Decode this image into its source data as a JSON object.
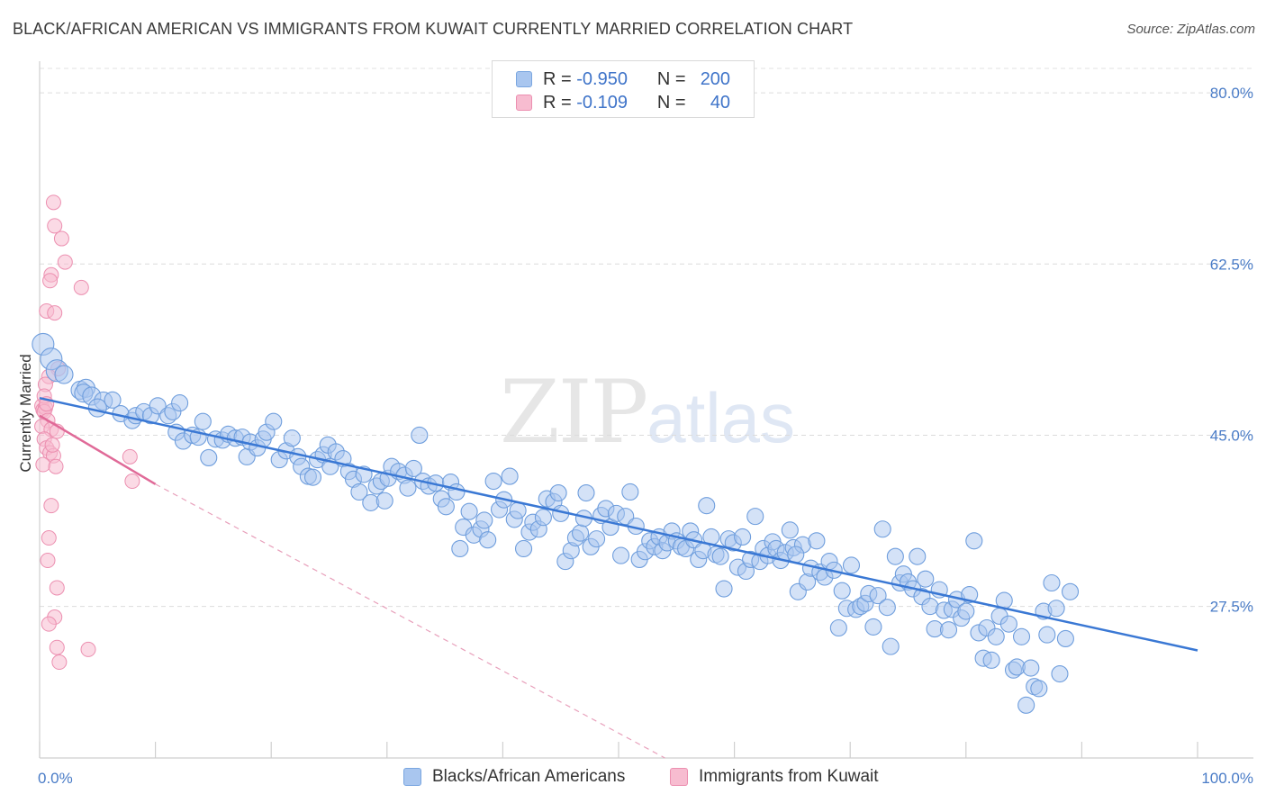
{
  "header": {
    "title": "BLACK/AFRICAN AMERICAN VS IMMIGRANTS FROM KUWAIT CURRENTLY MARRIED CORRELATION CHART",
    "source": "Source: ZipAtlas.com"
  },
  "watermark": {
    "zip": "ZIP",
    "atlas": "atlas"
  },
  "legend": {
    "rows": [
      {
        "r_label": "R =",
        "r_value": "-0.950",
        "n_label": "N =",
        "n_value": "200",
        "color": "#a9c6ef",
        "border": "#7aa6e0"
      },
      {
        "r_label": "R =",
        "r_value": "-0.109",
        "n_label": "N =",
        "n_value": "40",
        "color": "#f7bcd0",
        "border": "#ec8fb0"
      }
    ]
  },
  "bottom_legend": {
    "items": [
      {
        "label": "Blacks/African Americans",
        "color": "#a9c6ef",
        "border": "#7aa6e0"
      },
      {
        "label": "Immigrants from Kuwait",
        "color": "#f7bcd0",
        "border": "#ec8fb0"
      }
    ]
  },
  "chart_data": {
    "type": "scatter",
    "title": "BLACK/AFRICAN AMERICAN VS IMMIGRANTS FROM KUWAIT CURRENTLY MARRIED CORRELATION CHART",
    "xlabel": "",
    "ylabel": "Currently Married",
    "xlim": [
      0,
      100
    ],
    "ylim": [
      12,
      82.5
    ],
    "x_tick_labels": [
      "0.0%",
      "100.0%"
    ],
    "y_ticks": [
      27.5,
      45.0,
      62.5,
      80.0
    ],
    "y_tick_labels": [
      "27.5%",
      "45.0%",
      "62.5%",
      "80.0%"
    ],
    "grid": true,
    "legend_position": "top-center",
    "colors": {
      "blue": "#4a86d8",
      "blue_fill": "#a9c6ef",
      "pink": "#e06a98",
      "pink_fill": "#f7bcd0"
    },
    "series": [
      {
        "name": "Blacks/African Americans",
        "r": -0.95,
        "n": 200,
        "trend": {
          "x": [
            0,
            100
          ],
          "y": [
            48.8,
            23.0
          ]
        },
        "points": [
          [
            0.3,
            54.3
          ],
          [
            1.0,
            52.8
          ],
          [
            1.5,
            51.6
          ],
          [
            2.1,
            51.2
          ],
          [
            3.5,
            49.6
          ],
          [
            4.0,
            49.8
          ],
          [
            3.8,
            49.3
          ],
          [
            4.5,
            49.0
          ],
          [
            5.5,
            48.5
          ],
          [
            5.0,
            47.8
          ],
          [
            6.3,
            48.6
          ],
          [
            7.0,
            47.2
          ],
          [
            8.0,
            46.5
          ],
          [
            8.3,
            47.0
          ],
          [
            9.0,
            47.4
          ],
          [
            9.6,
            47.0
          ],
          [
            10.2,
            48.0
          ],
          [
            11.1,
            47.0
          ],
          [
            11.5,
            47.4
          ],
          [
            12.1,
            48.3
          ],
          [
            11.8,
            45.3
          ],
          [
            12.4,
            44.4
          ],
          [
            13.2,
            45.0
          ],
          [
            13.7,
            44.8
          ],
          [
            14.1,
            46.4
          ],
          [
            14.6,
            42.7
          ],
          [
            15.2,
            44.6
          ],
          [
            15.8,
            44.5
          ],
          [
            16.3,
            45.1
          ],
          [
            16.9,
            44.7
          ],
          [
            17.5,
            44.8
          ],
          [
            17.9,
            42.8
          ],
          [
            18.2,
            44.3
          ],
          [
            18.8,
            43.7
          ],
          [
            19.3,
            44.6
          ],
          [
            19.6,
            45.3
          ],
          [
            20.2,
            46.4
          ],
          [
            20.7,
            42.5
          ],
          [
            21.3,
            43.4
          ],
          [
            21.8,
            44.7
          ],
          [
            22.3,
            42.8
          ],
          [
            22.6,
            41.8
          ],
          [
            23.2,
            40.8
          ],
          [
            23.6,
            40.7
          ],
          [
            24.0,
            42.5
          ],
          [
            24.5,
            43.0
          ],
          [
            25.1,
            41.8
          ],
          [
            24.9,
            44.0
          ],
          [
            25.6,
            43.3
          ],
          [
            26.2,
            42.6
          ],
          [
            26.7,
            41.3
          ],
          [
            27.1,
            40.5
          ],
          [
            27.6,
            39.2
          ],
          [
            28.0,
            41.0
          ],
          [
            28.6,
            38.1
          ],
          [
            29.1,
            39.8
          ],
          [
            29.5,
            40.3
          ],
          [
            30.1,
            40.6
          ],
          [
            30.4,
            41.8
          ],
          [
            31.0,
            41.3
          ],
          [
            31.5,
            40.9
          ],
          [
            31.8,
            39.6
          ],
          [
            32.3,
            41.6
          ],
          [
            32.8,
            45.0
          ],
          [
            33.1,
            40.3
          ],
          [
            33.6,
            39.8
          ],
          [
            34.2,
            40.1
          ],
          [
            34.7,
            38.5
          ],
          [
            35.1,
            37.7
          ],
          [
            35.5,
            40.2
          ],
          [
            36.0,
            39.2
          ],
          [
            36.3,
            33.4
          ],
          [
            36.6,
            35.6
          ],
          [
            37.1,
            37.2
          ],
          [
            37.5,
            34.8
          ],
          [
            38.1,
            35.4
          ],
          [
            38.4,
            36.3
          ],
          [
            38.7,
            34.3
          ],
          [
            39.2,
            40.3
          ],
          [
            39.7,
            37.4
          ],
          [
            40.1,
            38.4
          ],
          [
            40.6,
            40.8
          ],
          [
            41.0,
            36.4
          ],
          [
            41.3,
            37.3
          ],
          [
            41.8,
            33.4
          ],
          [
            42.3,
            35.1
          ],
          [
            42.6,
            36.1
          ],
          [
            43.1,
            35.4
          ],
          [
            43.5,
            36.6
          ],
          [
            43.8,
            38.5
          ],
          [
            44.4,
            38.2
          ],
          [
            44.8,
            39.1
          ],
          [
            45.0,
            37.0
          ],
          [
            45.4,
            32.1
          ],
          [
            45.9,
            33.2
          ],
          [
            46.3,
            34.5
          ],
          [
            46.7,
            35.0
          ],
          [
            47.2,
            39.1
          ],
          [
            47.6,
            33.6
          ],
          [
            48.1,
            34.4
          ],
          [
            48.5,
            36.8
          ],
          [
            48.9,
            37.5
          ],
          [
            49.3,
            35.6
          ],
          [
            49.8,
            37.0
          ],
          [
            50.2,
            32.7
          ],
          [
            50.6,
            36.7
          ],
          [
            51.0,
            39.2
          ],
          [
            51.5,
            35.7
          ],
          [
            51.8,
            32.3
          ],
          [
            52.3,
            33.1
          ],
          [
            52.7,
            34.2
          ],
          [
            53.1,
            33.6
          ],
          [
            53.5,
            34.6
          ],
          [
            53.8,
            33.2
          ],
          [
            54.2,
            34.0
          ],
          [
            54.6,
            35.2
          ],
          [
            55.0,
            34.2
          ],
          [
            55.4,
            33.6
          ],
          [
            55.8,
            33.4
          ],
          [
            56.2,
            35.2
          ],
          [
            56.5,
            34.3
          ],
          [
            56.9,
            32.3
          ],
          [
            57.3,
            33.2
          ],
          [
            57.6,
            37.8
          ],
          [
            58.0,
            34.6
          ],
          [
            58.4,
            32.8
          ],
          [
            58.8,
            32.6
          ],
          [
            59.1,
            29.3
          ],
          [
            59.5,
            34.4
          ],
          [
            59.9,
            34.0
          ],
          [
            60.3,
            31.5
          ],
          [
            60.7,
            34.6
          ],
          [
            61.0,
            31.1
          ],
          [
            61.4,
            32.3
          ],
          [
            61.8,
            36.7
          ],
          [
            62.2,
            32.1
          ],
          [
            62.5,
            33.4
          ],
          [
            62.9,
            32.7
          ],
          [
            63.3,
            34.1
          ],
          [
            63.6,
            33.4
          ],
          [
            64.0,
            32.2
          ],
          [
            64.4,
            33.0
          ],
          [
            64.8,
            35.3
          ],
          [
            65.1,
            33.5
          ],
          [
            65.5,
            29.0
          ],
          [
            65.9,
            33.8
          ],
          [
            66.3,
            30.0
          ],
          [
            66.6,
            31.4
          ],
          [
            67.1,
            34.2
          ],
          [
            67.4,
            31.0
          ],
          [
            67.8,
            30.5
          ],
          [
            68.2,
            32.1
          ],
          [
            68.6,
            31.2
          ],
          [
            69.0,
            25.3
          ],
          [
            69.3,
            29.1
          ],
          [
            69.7,
            27.3
          ],
          [
            70.1,
            31.7
          ],
          [
            70.5,
            27.2
          ],
          [
            70.9,
            27.5
          ],
          [
            71.3,
            27.8
          ],
          [
            71.6,
            28.8
          ],
          [
            72.0,
            25.4
          ],
          [
            72.4,
            28.6
          ],
          [
            72.8,
            35.4
          ],
          [
            73.2,
            27.4
          ],
          [
            73.5,
            23.4
          ],
          [
            73.9,
            32.6
          ],
          [
            74.3,
            29.9
          ],
          [
            74.6,
            30.8
          ],
          [
            75.0,
            30.0
          ],
          [
            75.4,
            29.3
          ],
          [
            75.8,
            32.6
          ],
          [
            76.2,
            28.5
          ],
          [
            76.5,
            30.3
          ],
          [
            76.9,
            27.5
          ],
          [
            77.3,
            25.2
          ],
          [
            77.7,
            29.2
          ],
          [
            78.1,
            27.1
          ],
          [
            78.5,
            25.1
          ],
          [
            78.8,
            27.2
          ],
          [
            79.2,
            28.2
          ],
          [
            79.6,
            26.3
          ],
          [
            80.0,
            27.0
          ],
          [
            80.3,
            28.7
          ],
          [
            80.7,
            34.2
          ],
          [
            81.1,
            24.8
          ],
          [
            81.5,
            22.2
          ],
          [
            81.8,
            25.3
          ],
          [
            82.2,
            22.0
          ],
          [
            82.6,
            24.4
          ],
          [
            82.9,
            26.5
          ],
          [
            83.3,
            28.1
          ],
          [
            83.7,
            25.7
          ],
          [
            84.1,
            21.0
          ],
          [
            84.4,
            21.3
          ],
          [
            84.8,
            24.4
          ],
          [
            85.2,
            17.4
          ],
          [
            85.6,
            21.2
          ],
          [
            85.9,
            19.3
          ],
          [
            86.3,
            19.1
          ],
          [
            86.7,
            27.0
          ],
          [
            87.0,
            24.6
          ],
          [
            87.4,
            29.9
          ],
          [
            87.8,
            27.3
          ],
          [
            88.1,
            20.6
          ],
          [
            88.6,
            24.2
          ],
          [
            89.0,
            29.0
          ],
          [
            65.3,
            32.8
          ],
          [
            29.8,
            38.3
          ],
          [
            47.0,
            36.5
          ]
        ]
      },
      {
        "name": "Immigrants from Kuwait",
        "r": -0.109,
        "n": 40,
        "trend": {
          "x": [
            0,
            10
          ],
          "y": [
            47.0,
            40.0
          ]
        },
        "trend_extension": {
          "x": [
            10,
            54
          ],
          "y": [
            40.0,
            12.0
          ]
        },
        "points": [
          [
            1.2,
            68.8
          ],
          [
            1.3,
            66.4
          ],
          [
            1.9,
            65.1
          ],
          [
            2.2,
            62.7
          ],
          [
            1.0,
            61.4
          ],
          [
            0.9,
            60.8
          ],
          [
            3.6,
            60.1
          ],
          [
            0.6,
            57.7
          ],
          [
            1.3,
            57.5
          ],
          [
            1.6,
            51.8
          ],
          [
            0.8,
            51.0
          ],
          [
            0.5,
            50.2
          ],
          [
            0.2,
            48.0
          ],
          [
            0.3,
            47.6
          ],
          [
            0.5,
            47.8
          ],
          [
            0.4,
            47.4
          ],
          [
            0.7,
            46.5
          ],
          [
            0.2,
            45.9
          ],
          [
            1.0,
            45.6
          ],
          [
            1.5,
            45.4
          ],
          [
            0.4,
            44.6
          ],
          [
            0.6,
            43.7
          ],
          [
            0.9,
            43.2
          ],
          [
            1.2,
            42.9
          ],
          [
            0.3,
            42.0
          ],
          [
            1.4,
            41.8
          ],
          [
            7.8,
            42.8
          ],
          [
            8.0,
            40.3
          ],
          [
            1.0,
            37.8
          ],
          [
            0.8,
            34.5
          ],
          [
            0.7,
            32.2
          ],
          [
            1.5,
            29.4
          ],
          [
            1.3,
            26.4
          ],
          [
            0.8,
            25.7
          ],
          [
            1.5,
            23.3
          ],
          [
            1.7,
            21.8
          ],
          [
            4.2,
            23.1
          ],
          [
            0.4,
            49.0
          ],
          [
            0.6,
            48.2
          ],
          [
            1.1,
            44.0
          ]
        ]
      }
    ]
  }
}
